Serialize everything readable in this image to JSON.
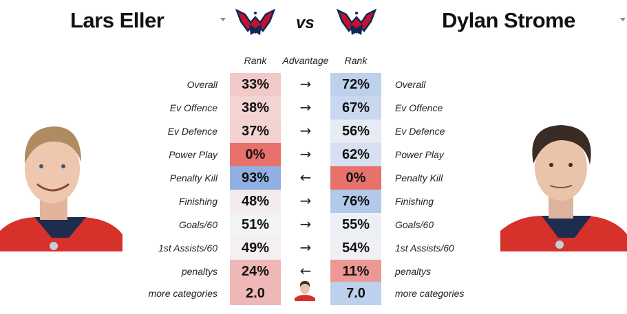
{
  "header": {
    "left_player": "Lars Eller",
    "right_player": "Dylan Strome",
    "vs": "vs",
    "logo_icon": "washington-capitals-logo"
  },
  "columns": {
    "rank_left": "Rank",
    "advantage": "Advantage",
    "rank_right": "Rank"
  },
  "rows": [
    {
      "label": "Overall",
      "left": "33%",
      "right": "72%",
      "arrow": "→",
      "left_color": "#f2c9c9",
      "right_color": "#bdd0ec"
    },
    {
      "label": "Ev Offence",
      "left": "38%",
      "right": "67%",
      "arrow": "→",
      "left_color": "#f4d4d3",
      "right_color": "#c9d8ef"
    },
    {
      "label": "Ev Defence",
      "left": "37%",
      "right": "56%",
      "arrow": "→",
      "left_color": "#f3d2d1",
      "right_color": "#e6ebf4"
    },
    {
      "label": "Power Play",
      "left": "0%",
      "right": "62%",
      "arrow": "→",
      "left_color": "#e8716b",
      "right_color": "#d6e0f1"
    },
    {
      "label": "Penalty Kill",
      "left": "93%",
      "right": "0%",
      "arrow": "←",
      "left_color": "#8fb0e0",
      "right_color": "#e8716b"
    },
    {
      "label": "Finishing",
      "left": "48%",
      "right": "76%",
      "arrow": "→",
      "left_color": "#f4ecec",
      "right_color": "#b3c9ea"
    },
    {
      "label": "Goals/60",
      "left": "51%",
      "right": "55%",
      "arrow": "→",
      "left_color": "#f2f3f5",
      "right_color": "#eceff5"
    },
    {
      "label": "1st Assists/60",
      "left": "49%",
      "right": "54%",
      "arrow": "→",
      "left_color": "#f5f0f0",
      "right_color": "#eef0f4"
    },
    {
      "label": "penaltys",
      "left": "24%",
      "right": "11%",
      "arrow": "←",
      "left_color": "#efb8b6",
      "right_color": "#ec9893"
    },
    {
      "label": "more categories",
      "left": "2.0",
      "right": "7.0",
      "arrow": "",
      "left_color": "#efb8b6",
      "right_color": "#bdd0ec"
    }
  ],
  "images": {
    "left_portrait": "lars-eller-headshot",
    "right_portrait": "dylan-strome-headshot",
    "winner_icon": "dylan-strome-mini-headshot"
  }
}
